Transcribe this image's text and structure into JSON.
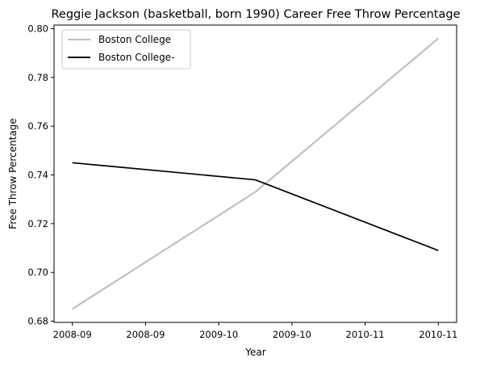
{
  "chart_data": {
    "type": "line",
    "title": "Reggie Jackson (basketball, born 1990) Career Free Throw Percentage",
    "xlabel": "Year",
    "ylabel": "Free Throw Percentage",
    "x_tick_labels": [
      "2008-09",
      "2008-09",
      "2009-10",
      "2009-10",
      "2010-11",
      "2010-11"
    ],
    "y_ticks": [
      0.68,
      0.7,
      0.72,
      0.74,
      0.76,
      0.78,
      0.8
    ],
    "y_tick_labels": [
      "0.68",
      "0.70",
      "0.72",
      "0.74",
      "0.76",
      "0.78",
      "0.80"
    ],
    "xlim": [
      -0.1,
      2.1
    ],
    "ylim": [
      0.6795,
      0.8015
    ],
    "grid": false,
    "legend_position": "top-left",
    "series": [
      {
        "name": "Boston College",
        "color": "#bfbfbf",
        "x": [
          0,
          1,
          2
        ],
        "x_labels": [
          "2008-09",
          "2009-10",
          "2010-11"
        ],
        "values": [
          0.685,
          0.733,
          0.796
        ]
      },
      {
        "name": "Boston College-",
        "color": "#000000",
        "x": [
          0,
          1,
          2
        ],
        "x_labels": [
          "2008-09",
          "2009-10",
          "2010-11"
        ],
        "values": [
          0.745,
          0.738,
          0.709
        ]
      }
    ]
  }
}
